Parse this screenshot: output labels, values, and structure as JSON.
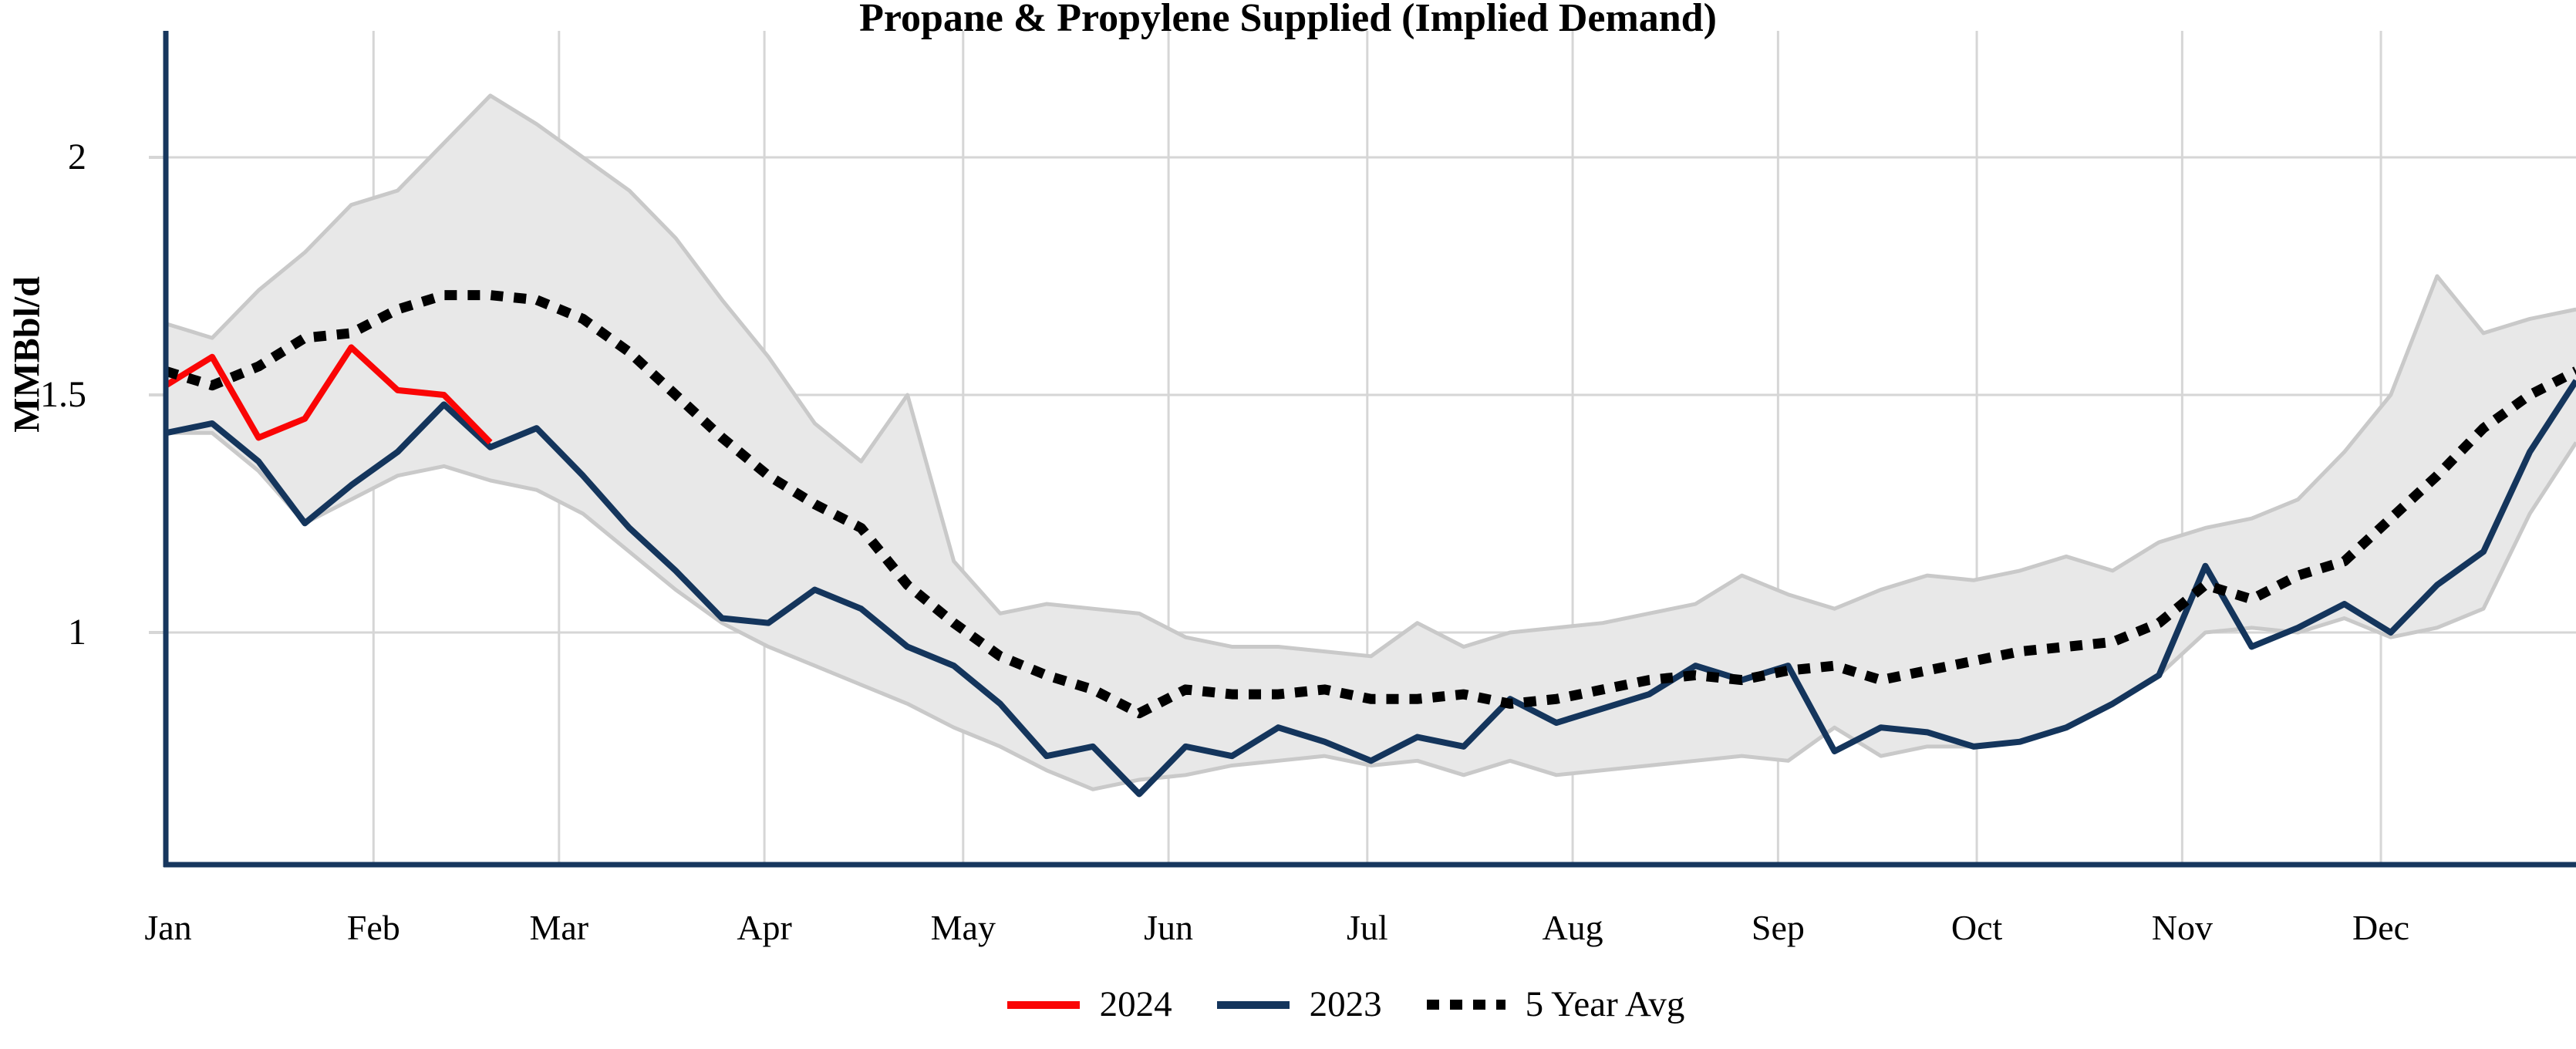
{
  "page": {
    "background": "#ffffff"
  },
  "chart": {
    "title": "Propane & Propylene Supplied (Implied Demand)",
    "ylabel": "MMBbl/d",
    "ytick_labels": [
      "2",
      "1.5",
      "1"
    ],
    "legend": [
      {
        "label": "2024",
        "color": "#fa0505",
        "style": "solid"
      },
      {
        "label": "2023",
        "color": "#14355c",
        "style": "solid"
      },
      {
        "label": "5 Year Avg",
        "color": "#000000",
        "style": "dotted"
      }
    ],
    "colors": {
      "accent_2024": "#fa0505",
      "accent_2023": "#14355c",
      "avg_line": "#000000",
      "band_fill": "#e8e8e8",
      "band_edge": "#c9c9c9",
      "gridline": "#d6d6d6",
      "axis": "#17375e"
    }
  },
  "chart_data": {
    "type": "line",
    "title": "Propane & Propylene Supplied (Implied Demand)",
    "xlabel": "",
    "ylabel": "MMBbl/d",
    "ylim": [
      0.51,
      2.28
    ],
    "yticks": [
      1,
      1.5,
      2
    ],
    "grid": true,
    "legend_position": "bottom-center",
    "x_months": [
      "Jan",
      "Feb",
      "Mar",
      "Apr",
      "May",
      "Jun",
      "Jul",
      "Aug",
      "Sep",
      "Oct",
      "Nov",
      "Dec"
    ],
    "x_sampling": "weekly; point 0 = final week of prior year at Jan 1, then 52 weekly points through late Dec",
    "series": [
      {
        "name": "2024",
        "style": "solid",
        "color": "#fa0505",
        "start_week": 0,
        "values": [
          1.52,
          1.58,
          1.41,
          1.45,
          1.6,
          1.51,
          1.5,
          1.4
        ]
      },
      {
        "name": "2023",
        "style": "solid",
        "color": "#14355c",
        "start_week": 0,
        "values": [
          1.42,
          1.44,
          1.36,
          1.23,
          1.31,
          1.38,
          1.48,
          1.39,
          1.43,
          1.33,
          1.22,
          1.13,
          1.03,
          1.02,
          1.09,
          1.05,
          0.97,
          0.93,
          0.85,
          0.74,
          0.76,
          0.66,
          0.76,
          0.74,
          0.8,
          0.77,
          0.73,
          0.78,
          0.76,
          0.86,
          0.81,
          0.84,
          0.87,
          0.93,
          0.9,
          0.93,
          0.75,
          0.8,
          0.79,
          0.76,
          0.77,
          0.8,
          0.85,
          0.91,
          1.14,
          0.97,
          1.01,
          1.06,
          1.0,
          1.1,
          1.17,
          1.38,
          1.53
        ]
      },
      {
        "name": "5 Year Avg",
        "style": "dotted",
        "color": "#000000",
        "start_week": 0,
        "values": [
          1.55,
          1.52,
          1.56,
          1.62,
          1.63,
          1.68,
          1.71,
          1.71,
          1.7,
          1.66,
          1.59,
          1.5,
          1.41,
          1.33,
          1.27,
          1.22,
          1.1,
          1.02,
          0.95,
          0.91,
          0.88,
          0.83,
          0.88,
          0.87,
          0.87,
          0.88,
          0.86,
          0.86,
          0.87,
          0.85,
          0.86,
          0.88,
          0.9,
          0.91,
          0.9,
          0.92,
          0.93,
          0.9,
          0.92,
          0.94,
          0.96,
          0.97,
          0.98,
          1.02,
          1.1,
          1.07,
          1.12,
          1.15,
          1.24,
          1.33,
          1.43,
          1.5,
          1.55
        ]
      }
    ],
    "band": {
      "name": "5-year range (shaded)",
      "fill": "#e8e8e8",
      "edge": "#c9c9c9",
      "upper": [
        1.65,
        1.62,
        1.72,
        1.8,
        1.9,
        1.93,
        2.03,
        2.13,
        2.07,
        2.0,
        1.93,
        1.83,
        1.7,
        1.58,
        1.44,
        1.36,
        1.5,
        1.15,
        1.04,
        1.06,
        1.05,
        1.04,
        0.99,
        0.97,
        0.97,
        0.96,
        0.95,
        1.02,
        0.97,
        1.0,
        1.01,
        1.02,
        1.04,
        1.06,
        1.12,
        1.08,
        1.05,
        1.09,
        1.12,
        1.11,
        1.13,
        1.16,
        1.13,
        1.19,
        1.22,
        1.24,
        1.28,
        1.38,
        1.5,
        1.75,
        1.63,
        1.66,
        1.68
      ],
      "lower": [
        1.42,
        1.42,
        1.34,
        1.23,
        1.28,
        1.33,
        1.35,
        1.32,
        1.3,
        1.25,
        1.17,
        1.09,
        1.02,
        0.97,
        0.93,
        0.89,
        0.85,
        0.8,
        0.76,
        0.71,
        0.67,
        0.69,
        0.7,
        0.72,
        0.73,
        0.74,
        0.72,
        0.73,
        0.7,
        0.73,
        0.7,
        0.71,
        0.72,
        0.73,
        0.74,
        0.73,
        0.8,
        0.74,
        0.76,
        0.76,
        0.77,
        0.8,
        0.85,
        0.91,
        1.0,
        1.01,
        1.0,
        1.03,
        0.99,
        1.01,
        1.05,
        1.25,
        1.4
      ]
    }
  }
}
